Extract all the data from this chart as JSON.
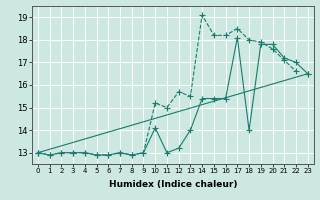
{
  "title": "",
  "xlabel": "Humidex (Indice chaleur)",
  "ylabel": "",
  "background_color": "#cce8e0",
  "grid_color": "#ffffff",
  "line_color": "#1a7a6e",
  "xlim": [
    -0.5,
    23.5
  ],
  "ylim": [
    12.5,
    19.5
  ],
  "xticks": [
    0,
    1,
    2,
    3,
    4,
    5,
    6,
    7,
    8,
    9,
    10,
    11,
    12,
    13,
    14,
    15,
    16,
    17,
    18,
    19,
    20,
    21,
    22,
    23
  ],
  "yticks": [
    13,
    14,
    15,
    16,
    17,
    18,
    19
  ],
  "line1_x": [
    0,
    1,
    2,
    3,
    4,
    5,
    6,
    7,
    8,
    9,
    10,
    11,
    12,
    13,
    14,
    15,
    16,
    17,
    18,
    19,
    20,
    21,
    22
  ],
  "line1_y": [
    13.0,
    12.9,
    13.0,
    13.0,
    13.0,
    12.9,
    12.9,
    13.0,
    12.9,
    13.0,
    15.2,
    15.0,
    15.7,
    15.5,
    19.1,
    18.2,
    18.2,
    18.5,
    18.0,
    17.9,
    17.6,
    17.1,
    16.6
  ],
  "line2_x": [
    0,
    1,
    2,
    3,
    4,
    5,
    6,
    7,
    8,
    9,
    10,
    11,
    12,
    13,
    14,
    15,
    16,
    17,
    18,
    19,
    20,
    21,
    22,
    23
  ],
  "line2_y": [
    13.0,
    12.9,
    13.0,
    13.0,
    13.0,
    12.9,
    12.9,
    13.0,
    12.9,
    13.0,
    14.1,
    13.0,
    13.2,
    14.0,
    15.4,
    15.4,
    15.4,
    18.1,
    14.0,
    17.8,
    17.8,
    17.2,
    17.0,
    16.5
  ],
  "line3_x": [
    0,
    23
  ],
  "line3_y": [
    13.0,
    16.5
  ],
  "marker_size": 2.5
}
